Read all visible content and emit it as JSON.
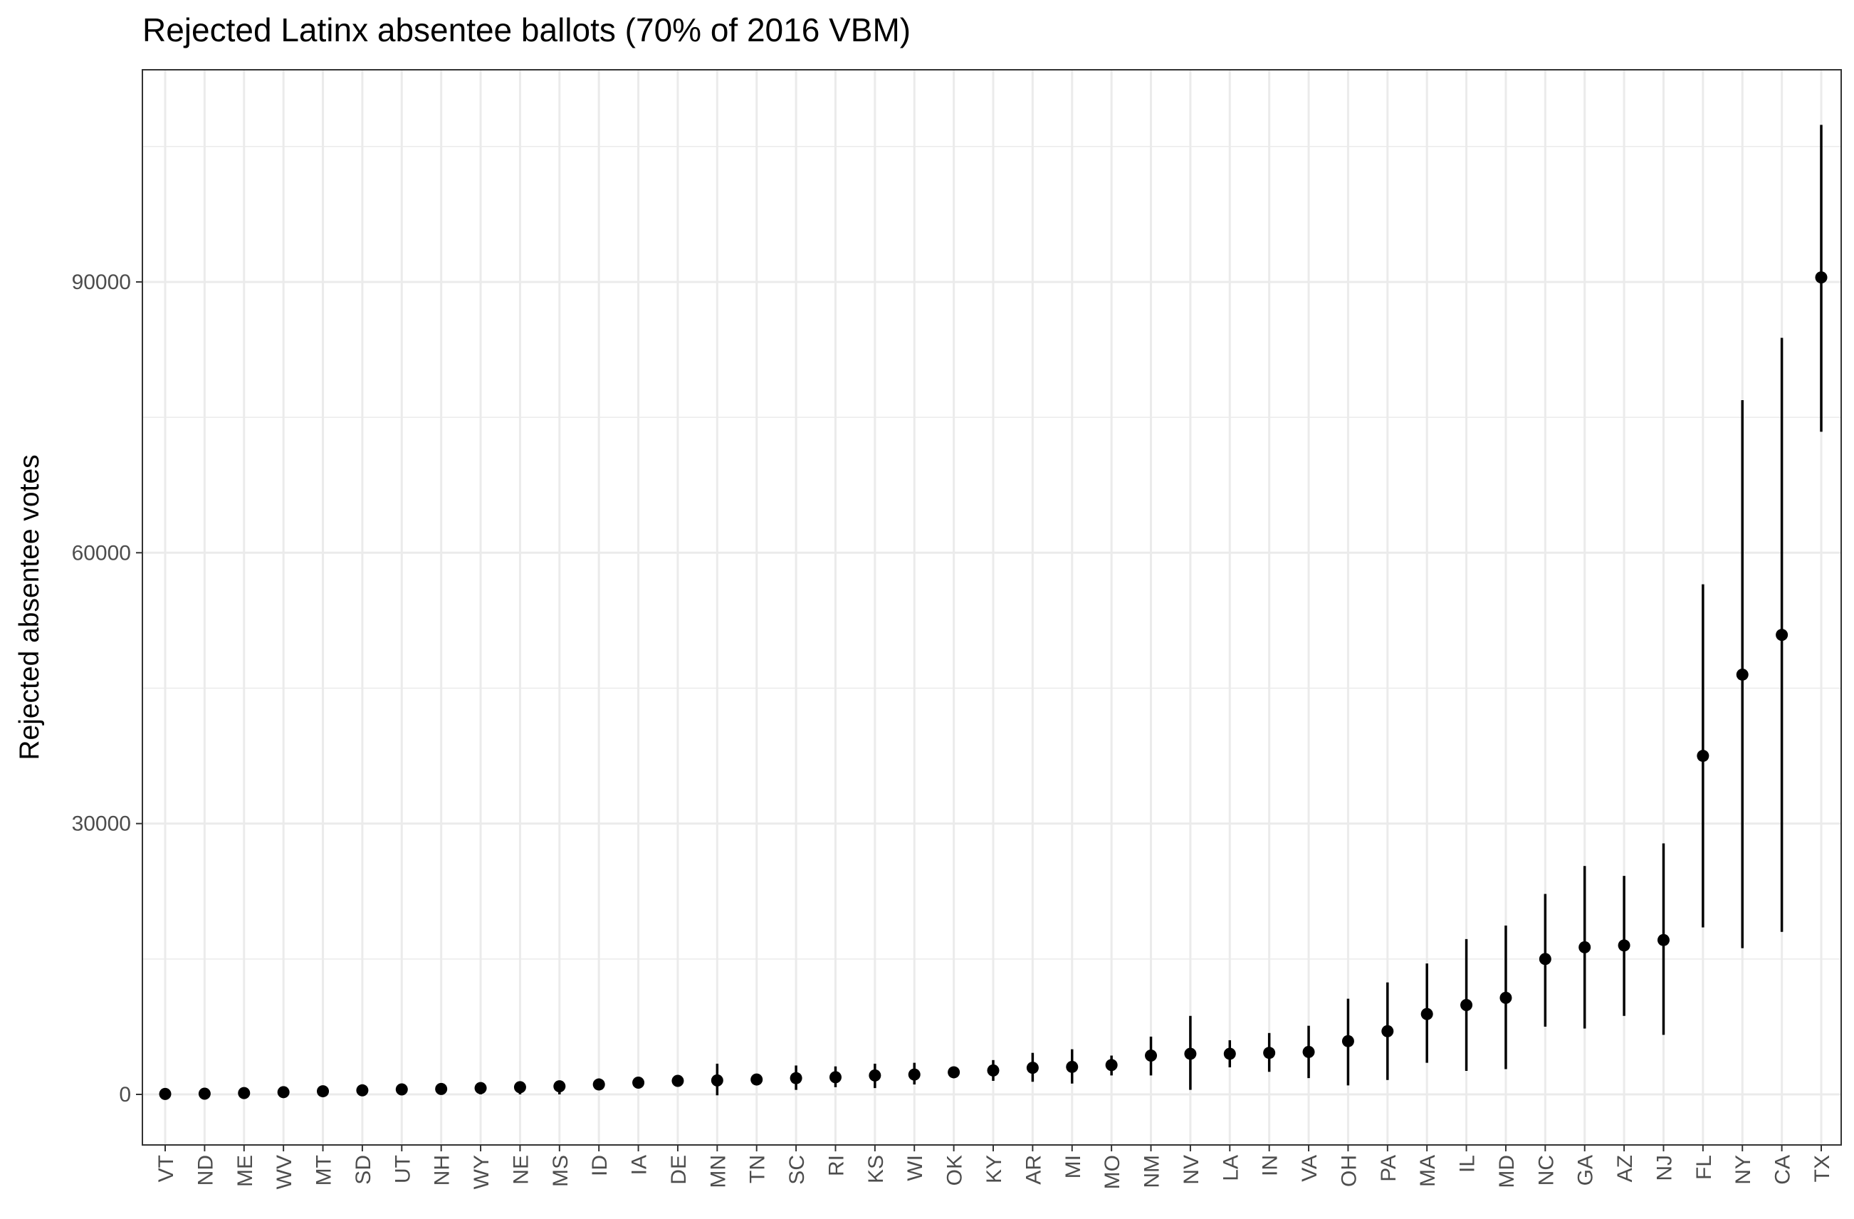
{
  "chart_data": {
    "type": "scatter",
    "title": "Rejected Latinx absentee ballots (70% of 2016 VBM)",
    "xlabel": "",
    "ylabel": "Rejected absentee votes",
    "ylim": [
      -5600,
      113500
    ],
    "yticks": [
      0,
      30000,
      60000,
      90000
    ],
    "ytick_labels": [
      "0",
      "30000",
      "60000",
      "90000"
    ],
    "grid": true,
    "error_bars": true,
    "x_tick_rotation": "vertical",
    "colors": {
      "points": "#000000",
      "grid": "#ebebeb",
      "border": "#333333",
      "background": "#ffffff"
    },
    "categories": [
      "VT",
      "ND",
      "ME",
      "WV",
      "MT",
      "SD",
      "UT",
      "NH",
      "WY",
      "NE",
      "MS",
      "ID",
      "IA",
      "DE",
      "MN",
      "TN",
      "SC",
      "RI",
      "KS",
      "WI",
      "OK",
      "KY",
      "AR",
      "MI",
      "MO",
      "NM",
      "NV",
      "LA",
      "IN",
      "VA",
      "OH",
      "PA",
      "MA",
      "IL",
      "MD",
      "NC",
      "GA",
      "AZ",
      "NJ",
      "FL",
      "NY",
      "CA",
      "TX"
    ],
    "series": [
      {
        "values": [
          50,
          80,
          150,
          250,
          350,
          450,
          550,
          600,
          700,
          800,
          900,
          1100,
          1300,
          1500,
          1550,
          1650,
          1800,
          1900,
          2100,
          2200,
          2450,
          2650,
          2950,
          3050,
          3250,
          4300,
          4500,
          4500,
          4600,
          4700,
          5900,
          7000,
          8900,
          9900,
          10700,
          15000,
          16300,
          16500,
          17100,
          37500,
          46500,
          50900,
          90500
        ],
        "lower": [
          0,
          0,
          0,
          0,
          0,
          0,
          0,
          0,
          0,
          0,
          0,
          500,
          900,
          1000,
          -100,
          1200,
          500,
          800,
          700,
          1100,
          1900,
          1500,
          1400,
          1200,
          2100,
          2100,
          500,
          3000,
          2500,
          1800,
          1000,
          1600,
          3500,
          2600,
          2800,
          7500,
          7300,
          8700,
          6600,
          18500,
          16200,
          18000,
          73400
        ],
        "upper": [
          200,
          300,
          400,
          600,
          700,
          800,
          900,
          1100,
          1200,
          1300,
          1500,
          1700,
          1700,
          2100,
          3400,
          2200,
          3200,
          3100,
          3400,
          3500,
          3000,
          3800,
          4600,
          5000,
          4300,
          6400,
          8700,
          6000,
          6800,
          7600,
          10600,
          12400,
          14500,
          17200,
          18700,
          22200,
          25300,
          24200,
          27800,
          56500,
          76900,
          83800,
          107400
        ]
      }
    ]
  }
}
